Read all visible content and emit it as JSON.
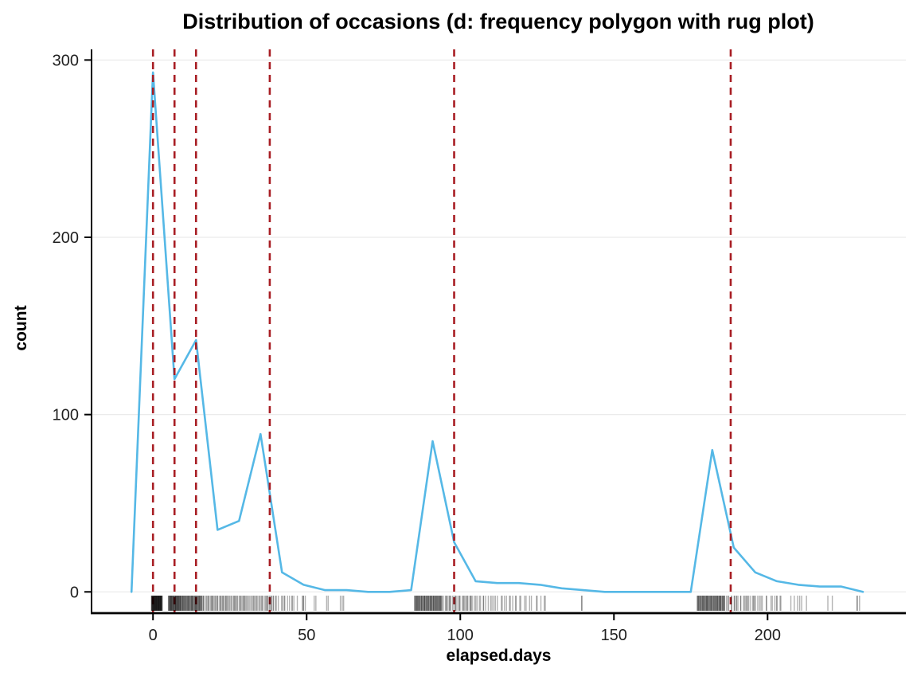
{
  "chart_data": {
    "type": "line",
    "title": "Distribution of occasions (d: frequency polygon with rug plot)",
    "xlabel": "elapsed.days",
    "ylabel": "count",
    "xlim": [
      -20,
      245
    ],
    "ylim": [
      -12,
      306
    ],
    "x_ticks": [
      0,
      50,
      100,
      150,
      200
    ],
    "y_ticks": [
      0,
      100,
      200,
      300
    ],
    "grid": "faint horizontal lines at y ticks",
    "legend": "none",
    "series": [
      {
        "name": "frequency polygon",
        "color": "#55B8E6",
        "x": [
          -7,
          0,
          7,
          14,
          21,
          28,
          35,
          42,
          49,
          56,
          63,
          70,
          77,
          84,
          91,
          98,
          105,
          112,
          119,
          126,
          133,
          140,
          147,
          154,
          161,
          168,
          175,
          182,
          189,
          196,
          203,
          210,
          217,
          224,
          231
        ],
        "y": [
          0,
          293,
          120,
          142,
          35,
          40,
          89,
          11,
          4,
          1,
          1,
          0,
          0,
          1,
          85,
          28,
          6,
          5,
          5,
          4,
          2,
          1,
          0,
          0,
          0,
          0,
          0,
          80,
          25,
          11,
          6,
          4,
          3,
          3,
          0
        ]
      }
    ],
    "vlines": {
      "name": "dashed reference lines",
      "color": "#A81E24",
      "dash": [
        9,
        7
      ],
      "x": [
        0,
        7,
        14,
        38,
        98,
        188
      ]
    },
    "rug": {
      "name": "rug plot of observations",
      "color": "#000000",
      "opacity": 0.3,
      "clusters": [
        {
          "from": -0.5,
          "to": 3,
          "n": 60
        },
        {
          "from": 5,
          "to": 9,
          "n": 40
        },
        {
          "from": 9,
          "to": 16,
          "n": 50
        },
        {
          "from": 16,
          "to": 28,
          "n": 40
        },
        {
          "from": 28,
          "to": 40,
          "n": 35
        },
        {
          "from": 40,
          "to": 47,
          "n": 12
        },
        {
          "from": 48,
          "to": 50,
          "n": 4
        },
        {
          "from": 52,
          "to": 53,
          "n": 2
        },
        {
          "from": 56,
          "to": 57,
          "n": 2
        },
        {
          "from": 61,
          "to": 62,
          "n": 3
        },
        {
          "from": 85,
          "to": 94,
          "n": 60
        },
        {
          "from": 94,
          "to": 105,
          "n": 30
        },
        {
          "from": 105,
          "to": 118,
          "n": 20
        },
        {
          "from": 118,
          "to": 128,
          "n": 12
        },
        {
          "from": 139,
          "to": 140,
          "n": 2
        },
        {
          "from": 177,
          "to": 186,
          "n": 60
        },
        {
          "from": 186,
          "to": 197,
          "n": 25
        },
        {
          "from": 197,
          "to": 205,
          "n": 12
        },
        {
          "from": 207,
          "to": 213,
          "n": 6
        },
        {
          "from": 219,
          "to": 221,
          "n": 2
        },
        {
          "from": 228,
          "to": 231,
          "n": 3
        }
      ]
    }
  }
}
